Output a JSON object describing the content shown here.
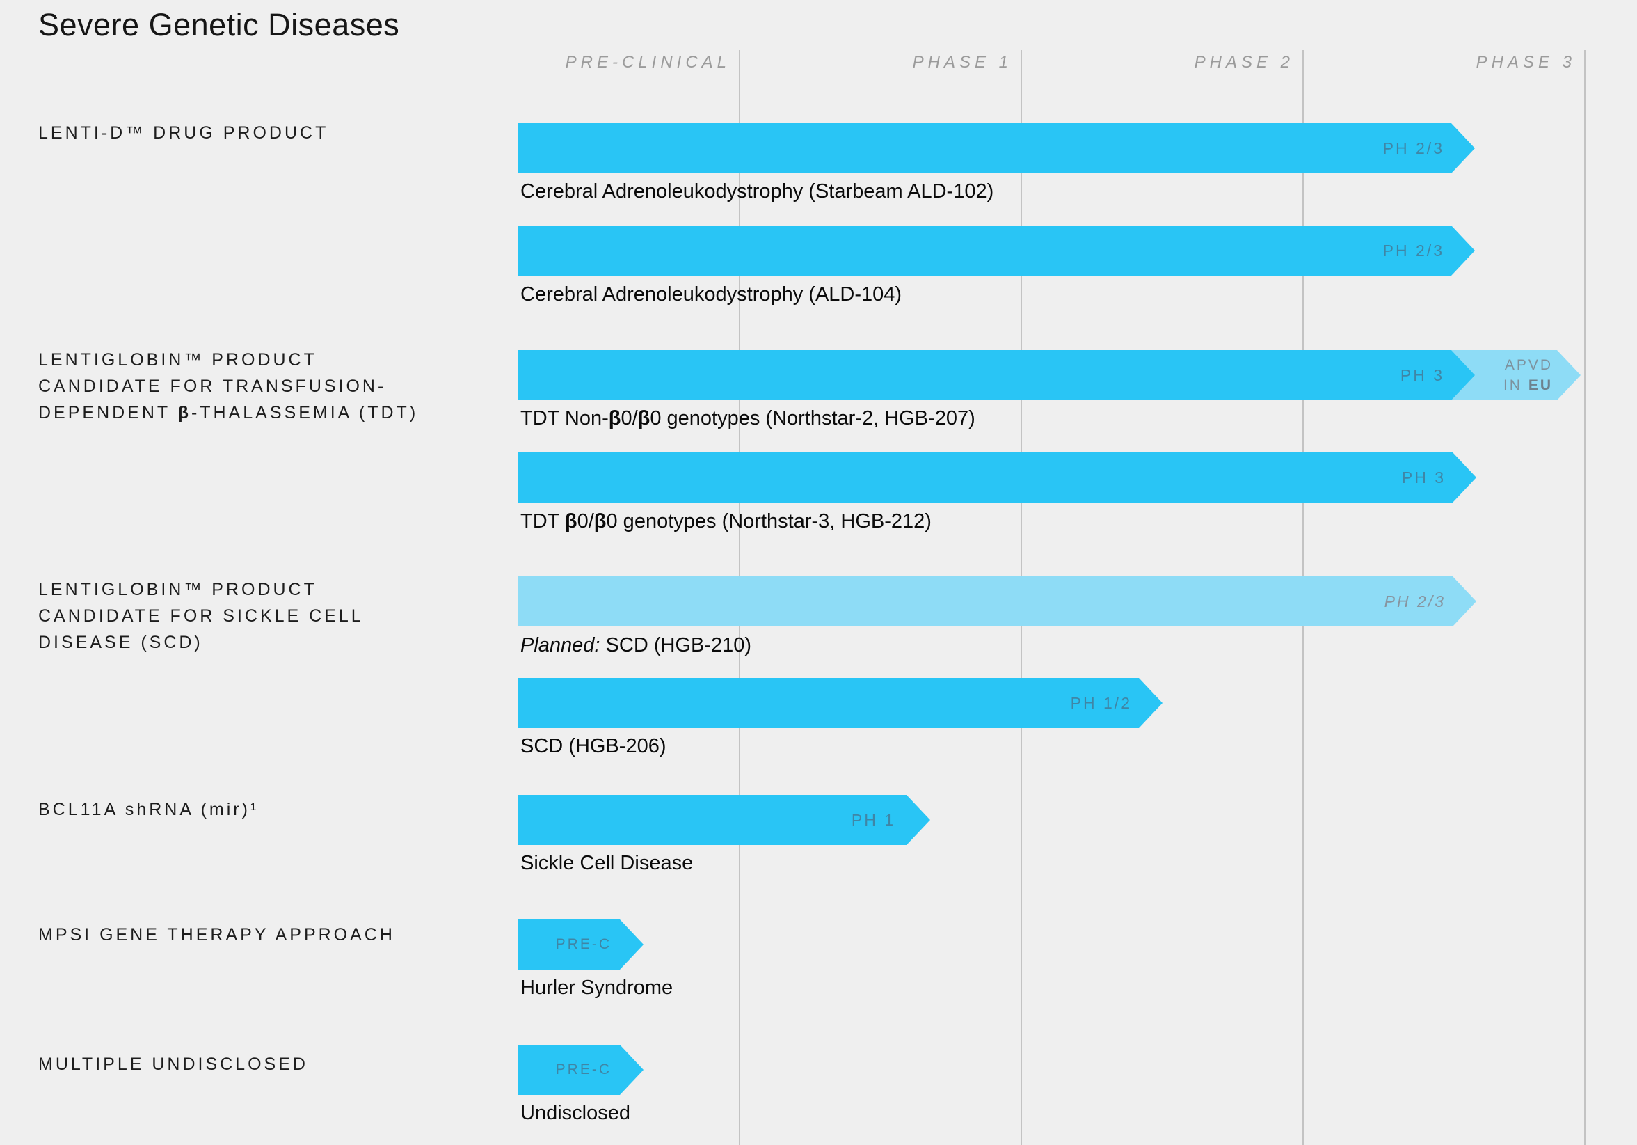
{
  "title": "Severe Genetic Diseases",
  "columns": [
    "PRE-CLINICAL",
    "PHASE 1",
    "PHASE 2",
    "PHASE 3"
  ],
  "colors": {
    "background": "#efefef",
    "bar_solid": "#29c5f5",
    "bar_planned_light": "#8edcf6",
    "gridline": "#c3c3c3",
    "header_text": "#9b9b9b",
    "bar_label_text": "#3f86a6"
  },
  "programs": [
    {
      "lines": [
        "LENTI-D™ DRUG PRODUCT"
      ]
    },
    {
      "lines": [
        "LENTIGLOBIN™ PRODUCT",
        "CANDIDATE FOR TRANSFUSION-"
      ],
      "line3_parts": [
        "DEPENDENT ",
        "β",
        "-THALASSEMIA (TDT)"
      ]
    },
    {
      "lines": [
        "LENTIGLOBIN™ PRODUCT",
        "CANDIDATE FOR SICKLE CELL",
        "DISEASE (SCD)"
      ]
    },
    {
      "lines": [
        "BCL11A shRNA (mir)¹"
      ]
    },
    {
      "lines": [
        "MPSI GENE THERAPY APPROACH"
      ]
    },
    {
      "lines": [
        "MULTIPLE UNDISCLOSED"
      ]
    }
  ],
  "rows": [
    {
      "phase": "PH 2/3",
      "sublabel": "Cerebral Adrenoleukodystrophy (Starbeam ALD-102)"
    },
    {
      "phase": "PH 2/3",
      "sublabel": "Cerebral Adrenoleukodystrophy (ALD-104)"
    },
    {
      "phase": "PH 3",
      "approval": {
        "line1": "APVD",
        "line2_a": "IN",
        "line2_b": "EU"
      },
      "sublabel_parts": [
        "TDT Non-",
        "β",
        "0/",
        "β",
        "0 genotypes (Northstar-2, HGB-207)"
      ]
    },
    {
      "phase": "PH 3",
      "sublabel_parts": [
        "TDT ",
        "β",
        "0/",
        "β",
        "0 genotypes (Northstar-3, HGB-212)"
      ]
    },
    {
      "phase": "PH 2/3",
      "sublabel_prefix": "Planned:",
      "sublabel": " SCD (HGB-210)"
    },
    {
      "phase": "PH 1/2",
      "sublabel": "SCD (HGB-206)"
    },
    {
      "phase": "PH 1",
      "sublabel": "Sickle Cell Disease"
    },
    {
      "phase": "PRE-C",
      "sublabel": "Hurler Syndrome"
    },
    {
      "phase": "PRE-C",
      "sublabel": "Undisclosed"
    }
  ],
  "chart_data": {
    "type": "bar",
    "orientation": "horizontal",
    "title": "Severe Genetic Diseases",
    "x_axis_columns": [
      "PRE-CLINICAL",
      "PHASE 1",
      "PHASE 2",
      "PHASE 3"
    ],
    "legend_position": "none",
    "grid": "vertical-column-separators",
    "bars": [
      {
        "program": "LENTI-D™ DRUG PRODUCT",
        "label": "Cerebral Adrenoleukodystrophy (Starbeam ALD-102)",
        "stage_label": "PH 2/3",
        "style": "solid",
        "end_column": "PHASE 3",
        "end_fraction_within_column": 0.6
      },
      {
        "program": "LENTI-D™ DRUG PRODUCT",
        "label": "Cerebral Adrenoleukodystrophy (ALD-104)",
        "stage_label": "PH 2/3",
        "style": "solid",
        "end_column": "PHASE 3",
        "end_fraction_within_column": 0.6
      },
      {
        "program": "LENTIGLOBIN™ PRODUCT CANDIDATE FOR TRANSFUSION-DEPENDENT β-THALASSEMIA (TDT)",
        "label": "TDT Non-β0/β0 genotypes (Northstar-2, HGB-207)",
        "stage_label": "PH 3",
        "style": "solid",
        "end_column": "PHASE 3",
        "end_fraction_within_column": 0.6,
        "annotation": "APVD IN EU",
        "annotation_style": "light",
        "annotation_end_fraction_within_column": 1.0
      },
      {
        "program": "LENTIGLOBIN™ PRODUCT CANDIDATE FOR TRANSFUSION-DEPENDENT β-THALASSEMIA (TDT)",
        "label": "TDT β0/β0 genotypes (Northstar-3, HGB-212)",
        "stage_label": "PH 3",
        "style": "solid",
        "end_column": "PHASE 3",
        "end_fraction_within_column": 0.6
      },
      {
        "program": "LENTIGLOBIN™ PRODUCT CANDIDATE FOR SICKLE CELL DISEASE (SCD)",
        "label": "Planned: SCD (HGB-210)",
        "stage_label": "PH 2/3",
        "style": "planned-light",
        "end_column": "PHASE 3",
        "end_fraction_within_column": 0.6
      },
      {
        "program": "LENTIGLOBIN™ PRODUCT CANDIDATE FOR SICKLE CELL DISEASE (SCD)",
        "label": "SCD (HGB-206)",
        "stage_label": "PH 1/2",
        "style": "solid",
        "end_column": "PHASE 2",
        "end_fraction_within_column": 0.5
      },
      {
        "program": "BCL11A shRNA (mir)¹",
        "label": "Sickle Cell Disease",
        "stage_label": "PH 1",
        "style": "solid",
        "end_column": "PHASE 1",
        "end_fraction_within_column": 0.68
      },
      {
        "program": "MPSI GENE THERAPY APPROACH",
        "label": "Hurler Syndrome",
        "stage_label": "PRE-C",
        "style": "solid",
        "end_column": "PRE-CLINICAL",
        "end_fraction_within_column": 0.55
      },
      {
        "program": "MULTIPLE UNDISCLOSED",
        "label": "Undisclosed",
        "stage_label": "PRE-C",
        "style": "solid",
        "end_column": "PRE-CLINICAL",
        "end_fraction_within_column": 0.55
      }
    ]
  }
}
